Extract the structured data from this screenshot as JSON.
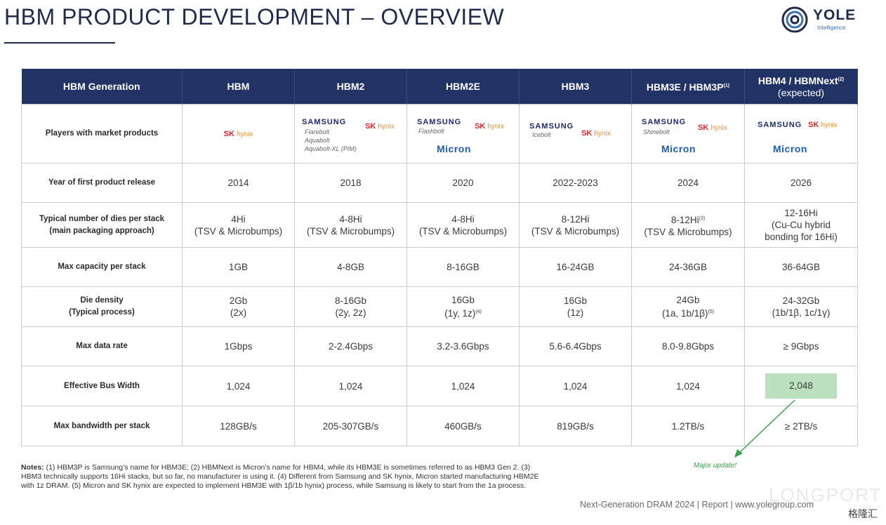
{
  "title": "HBM PRODUCT DEVELOPMENT – OVERVIEW",
  "logo": {
    "word": "YOLE",
    "sub": "Intelligence"
  },
  "columns": [
    {
      "label": "HBM Generation"
    },
    {
      "label": "HBM"
    },
    {
      "label": "HBM2"
    },
    {
      "label": "HBM2E"
    },
    {
      "label": "HBM3"
    },
    {
      "label": "HBM3E / HBM3P",
      "sup": "(1)"
    },
    {
      "label": "HBM4 / HBMNext",
      "sup": "(2)",
      "sub": "(expected)"
    }
  ],
  "players": {
    "label": "Players with market products",
    "brands": {
      "samsung": "SAMSUNG",
      "sk": "SK",
      "hynix": "hynix",
      "micron": "Micron"
    },
    "hbm2_names": [
      "Flarebolt",
      "Aquabolt",
      "Aquabolt-XL (PIM)"
    ],
    "hbm2e_names": [
      "Flashbolt"
    ],
    "hbm3_names": [
      "Icebolt"
    ],
    "hbm3e_names": [
      "Shinebolt"
    ]
  },
  "rows": {
    "year": {
      "label": "Year of first product release",
      "values": [
        "2014",
        "2018",
        "2020",
        "2022-2023",
        "2024",
        "2026"
      ]
    },
    "dies": {
      "label1": "Typical number of dies per stack",
      "label2": "(main packaging approach)",
      "values": [
        {
          "a": "4Hi",
          "b": "(TSV & Microbumps)"
        },
        {
          "a": "4-8Hi",
          "b": "(TSV & Microbumps)"
        },
        {
          "a": "4-8Hi",
          "b": "(TSV & Microbumps)"
        },
        {
          "a": "8-12Hi",
          "b": "(TSV & Microbumps)"
        },
        {
          "a": "8-12Hi",
          "sup": "(3)",
          "b": "(TSV & Microbumps)"
        },
        {
          "a": "12-16Hi",
          "b": "(Cu-Cu hybrid",
          "c": "bonding for 16Hi)"
        }
      ]
    },
    "capacity": {
      "label": "Max capacity per stack",
      "values": [
        "1GB",
        "4-8GB",
        "8-16GB",
        "16-24GB",
        "24-36GB",
        "36-64GB"
      ]
    },
    "density": {
      "label1": "Die density",
      "label2": "(Typical process)",
      "values": [
        {
          "a": "2Gb",
          "b": "(2x)"
        },
        {
          "a": "8-16Gb",
          "b": "(2y, 2z)"
        },
        {
          "a": "16Gb",
          "b": "(1y, 1z)",
          "sup": "(4)"
        },
        {
          "a": "16Gb",
          "b": "(1z)"
        },
        {
          "a": "24Gb",
          "b": "(1a, 1b/1β)",
          "sup": "(5)"
        },
        {
          "a": "24-32Gb",
          "b": "(1b/1β, 1c/1γ)"
        }
      ]
    },
    "datarate": {
      "label": "Max data rate",
      "values": [
        "1Gbps",
        "2-2.4Gbps",
        "3.2-3.6Gbps",
        "5.6-6.4Gbps",
        "8.0-9.8Gbps",
        "≥ 9Gbps"
      ]
    },
    "buswidth": {
      "label": "Effective Bus Width",
      "values": [
        "1,024",
        "1,024",
        "1,024",
        "1,024",
        "1,024",
        "2,048"
      ]
    },
    "bandwidth": {
      "label": "Max bandwidth per stack",
      "values": [
        "128GB/s",
        "205-307GB/s",
        "460GB/s",
        "819GB/s",
        "1.2TB/s",
        "≥ 2TB/s"
      ]
    }
  },
  "notes": {
    "lead": "Notes:",
    "text": "(1) HBM3P is Samsung’s name for HBM3E; (2) HBMNext is Micron’s name for HBM4, while its HBM3E is sometimes referred to as HBM3 Gen 2. (3) HBM3 technically supports 16Hi stacks, but so far, no manufacturer is using it. (4) Different from Samsung and SK hynix, Micron started manufacturing HBM2E with 1z DRAM. (5) Micron and SK hynix are expected to implement HBM3E with 1β/1b hynix) process, while Samsung is likely to start from the 1a process."
  },
  "annotation": "Major update!",
  "footer": "Next-Generation DRAM 2024 | Report | www.yolegroup.com",
  "watermark": "LONGPORT",
  "watermark2": "格隆汇",
  "colors": {
    "header": "#213265",
    "highlight": "#bde1bf",
    "arrow": "#3aa24a"
  }
}
